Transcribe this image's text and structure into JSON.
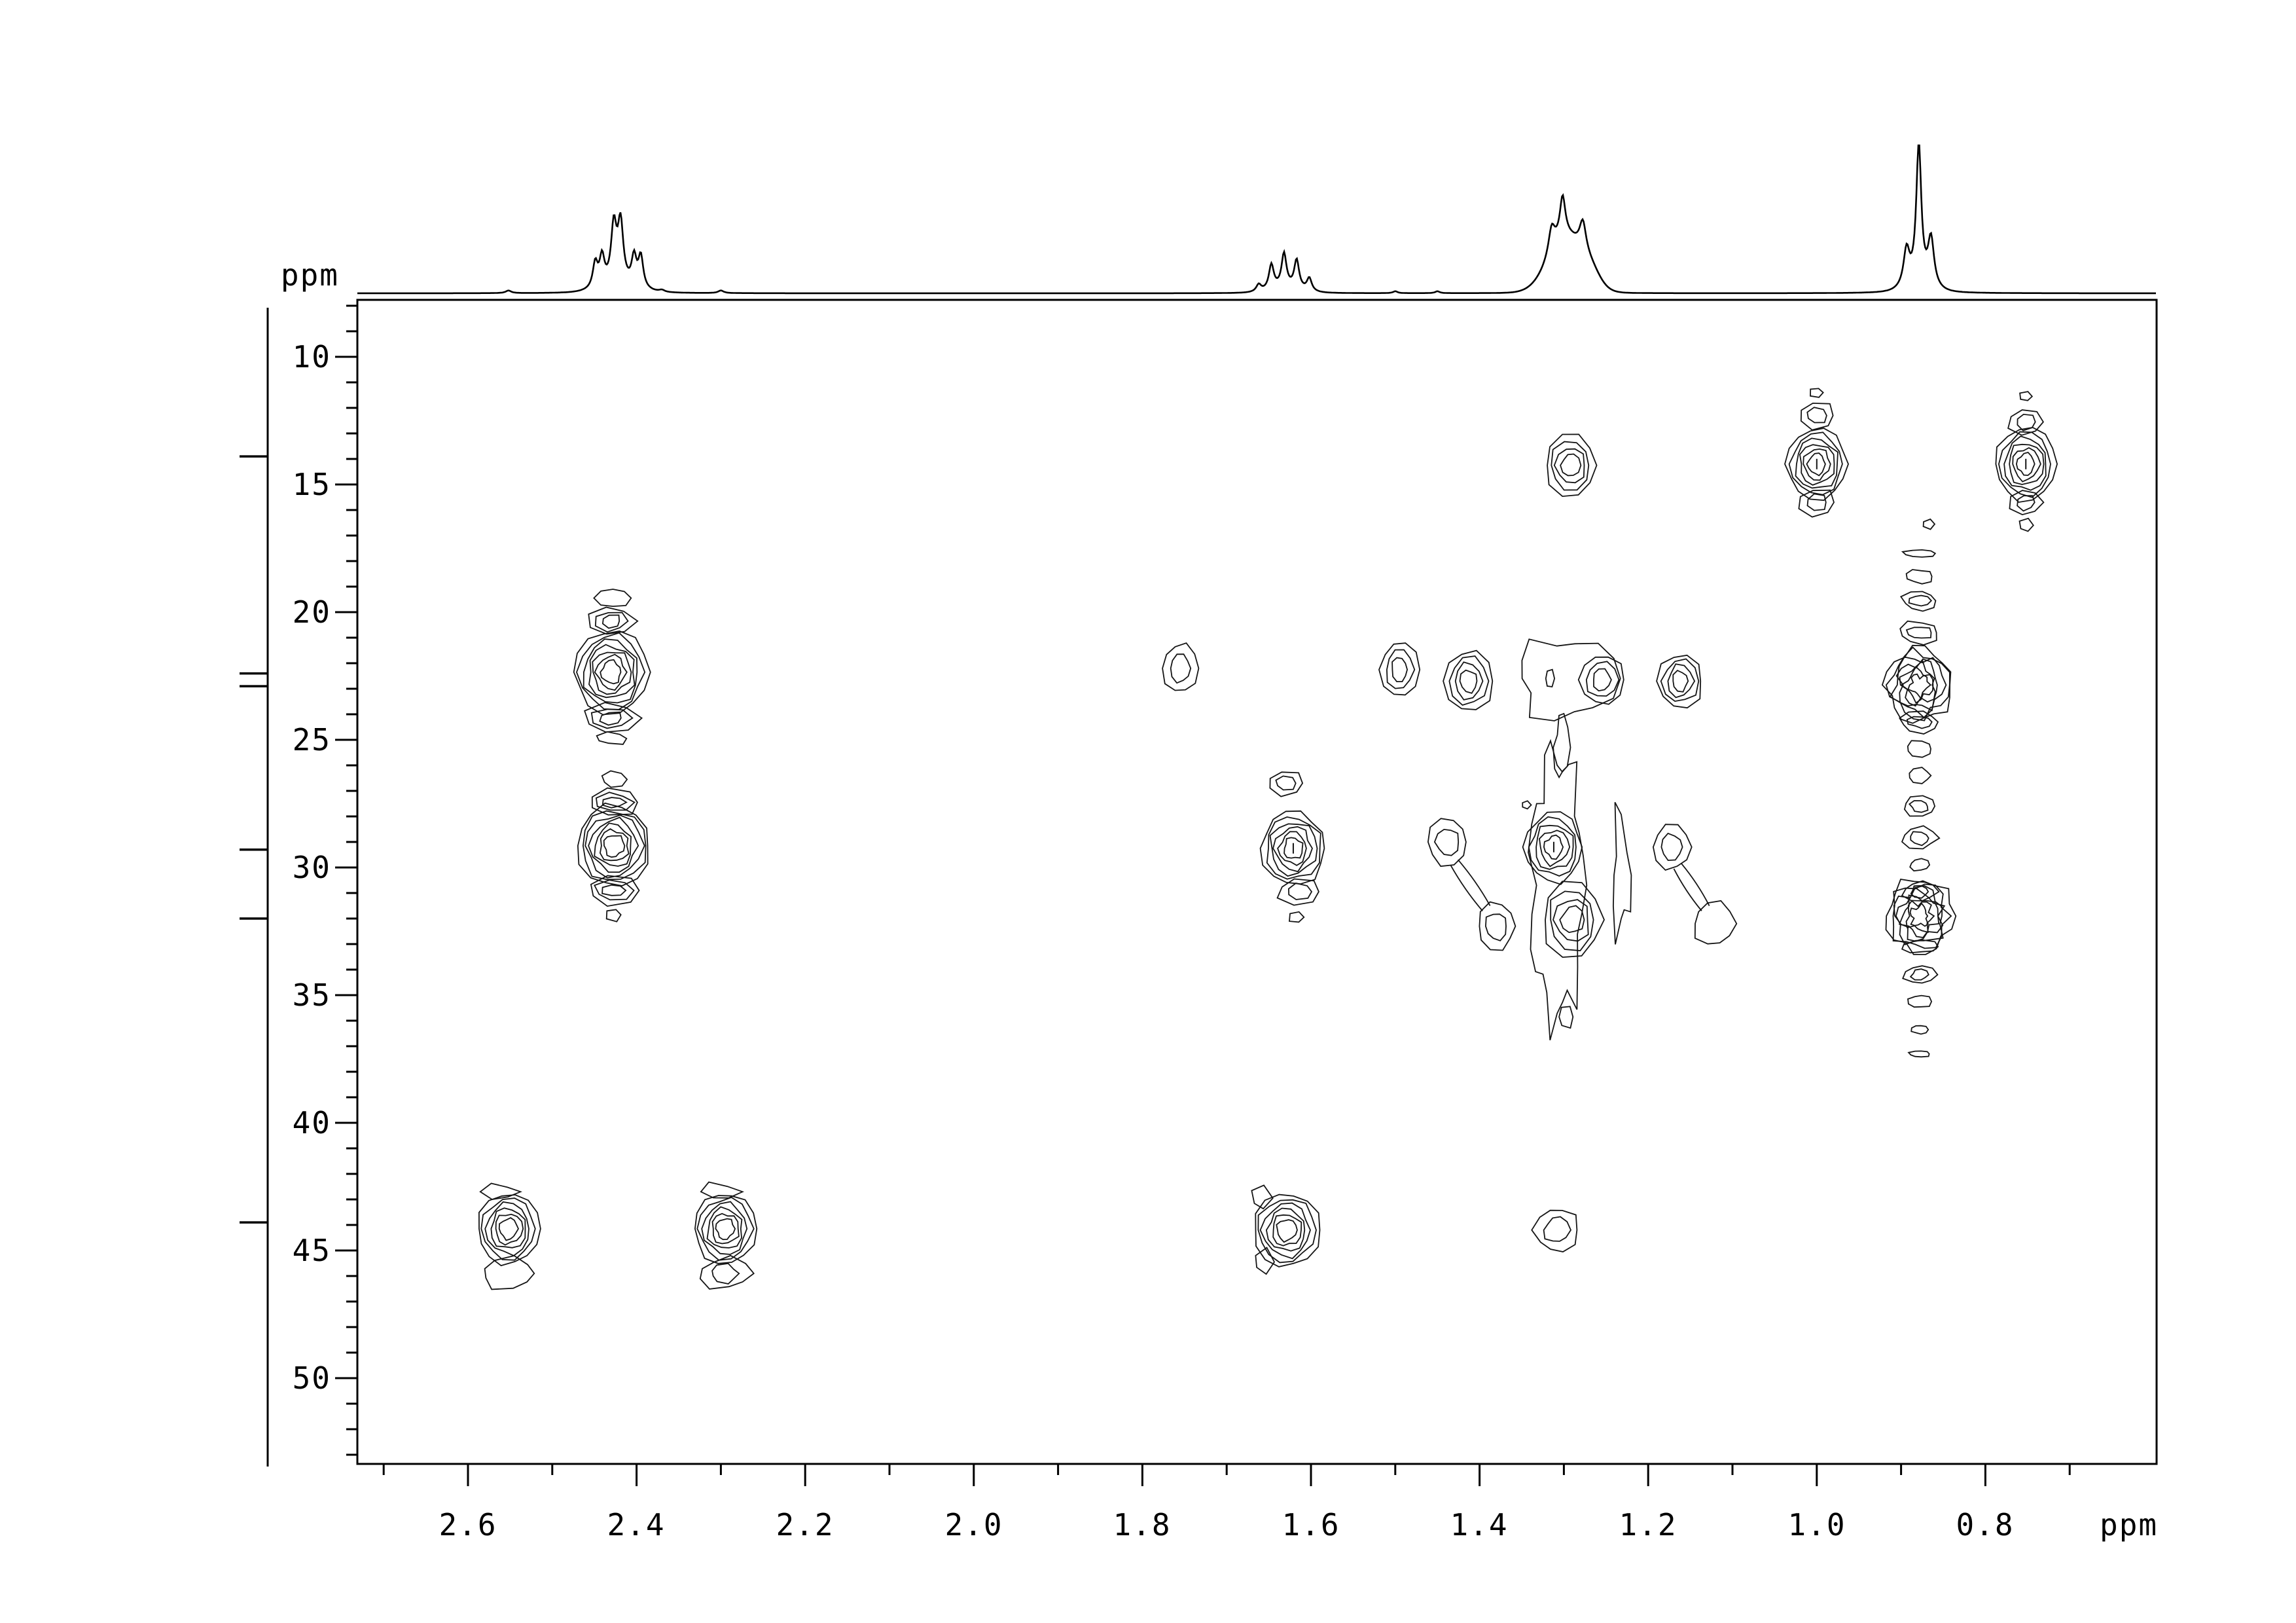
{
  "labels": {
    "top_left_ppm": "ppm",
    "bottom_right_ppm": "ppm"
  },
  "axes": {
    "x": {
      "unit": "ppm",
      "tick_labels": [
        "2.6",
        "2.4",
        "2.2",
        "2.0",
        "1.8",
        "1.6",
        "1.4",
        "1.2",
        "1.0",
        "0.8"
      ],
      "tick_values": [
        2.6,
        2.4,
        2.2,
        2.0,
        1.8,
        1.6,
        1.4,
        1.2,
        1.0,
        0.8
      ],
      "minor_tick_step": 0.1,
      "ppm_left": 2.73,
      "ppm_right": 0.6
    },
    "y": {
      "unit": "ppm",
      "tick_labels": [
        "10",
        "15",
        "20",
        "25",
        "30",
        "35",
        "40",
        "45",
        "50"
      ],
      "tick_values": [
        10,
        15,
        20,
        25,
        30,
        35,
        40,
        45,
        50
      ],
      "minor_tick_step": 1,
      "ppm_top": 7.8,
      "ppm_bottom": 53.3
    }
  },
  "chart_data": {
    "type": "heatmap",
    "subtype": "2D NMR contour spectrum (1H horizontal axis, 13C vertical axis) with 1H projection trace on top and 13C peak-position ruler on the left",
    "title": "",
    "x_axis": {
      "label": "ppm",
      "range": [
        2.73,
        0.6
      ],
      "direction": "decreasing-rightward",
      "grid": false
    },
    "y_axis": {
      "label": "ppm",
      "range": [
        7.8,
        53.3
      ],
      "direction": "increasing-downward",
      "grid": false
    },
    "legend": "none",
    "cross_peaks": [
      {
        "h1": 1.292,
        "c13": 14.25,
        "intensity": 4,
        "rings": 4,
        "w": 78,
        "h": 96,
        "jag": 0.07
      },
      {
        "h1": 1.0,
        "c13": 14.2,
        "intensity": 6,
        "rings": 6,
        "w": 92,
        "h": 108,
        "jag": 0.06,
        "dash": true
      },
      {
        "h1": 0.752,
        "c13": 14.2,
        "intensity": 6,
        "rings": 6,
        "w": 92,
        "h": 112,
        "jag": 0.06,
        "dash": true
      },
      {
        "h1": 2.43,
        "c13": 22.35,
        "intensity": 7,
        "rings": 7,
        "w": 112,
        "h": 128,
        "jag": 0.06
      },
      {
        "h1": 1.755,
        "c13": 22.2,
        "intensity": 2,
        "rings": 2,
        "w": 54,
        "h": 74,
        "jag": 0.08
      },
      {
        "h1": 1.495,
        "c13": 22.25,
        "intensity": 3,
        "rings": 3,
        "w": 58,
        "h": 84,
        "jag": 0.08
      },
      {
        "h1": 1.413,
        "c13": 22.7,
        "intensity": 4,
        "rings": 4,
        "w": 74,
        "h": 94,
        "jag": 0.07
      },
      {
        "h1": 1.255,
        "c13": 22.65,
        "intensity": 3,
        "rings": 3,
        "w": 66,
        "h": 76,
        "jag": 0.08
      },
      {
        "h1": 1.162,
        "c13": 22.7,
        "intensity": 4,
        "rings": 4,
        "w": 68,
        "h": 84,
        "jag": 0.09
      },
      {
        "h1": 0.879,
        "c13": 22.85,
        "intensity": 7,
        "rings": 7,
        "w": 100,
        "h": 112,
        "jag": 0.13,
        "n": 18
      },
      {
        "h1": 2.427,
        "c13": 29.15,
        "intensity": 7,
        "rings": 7,
        "w": 112,
        "h": 124,
        "jag": 0.06
      },
      {
        "h1": 1.621,
        "c13": 29.25,
        "intensity": 6,
        "rings": 6,
        "w": 98,
        "h": 112,
        "jag": 0.07,
        "dash": true
      },
      {
        "h1": 1.438,
        "c13": 29.0,
        "intensity": 2,
        "rings": 2,
        "w": 62,
        "h": 72,
        "jag": 0.09
      },
      {
        "h1": 1.38,
        "c13": 32.3,
        "intensity": 2,
        "rings": 2,
        "w": 58,
        "h": 72,
        "jag": 0.1
      },
      {
        "h1": 1.312,
        "c13": 29.2,
        "intensity": 5,
        "rings": 5,
        "w": 88,
        "h": 106,
        "jag": 0.08,
        "dash": true
      },
      {
        "h1": 1.29,
        "c13": 32.05,
        "intensity": 4,
        "rings": 4,
        "w": 92,
        "h": 116,
        "jag": 0.09
      },
      {
        "h1": 1.172,
        "c13": 29.2,
        "intensity": 2,
        "rings": 2,
        "w": 58,
        "h": 68,
        "jag": 0.09
      },
      {
        "h1": 1.122,
        "c13": 32.2,
        "intensity": 1,
        "rings": 1,
        "w": 62,
        "h": 66,
        "jag": 0.12
      },
      {
        "h1": 0.878,
        "c13": 31.9,
        "intensity": 7,
        "rings": 7,
        "w": 100,
        "h": 112,
        "jag": 0.13,
        "n": 18
      },
      {
        "h1": 2.552,
        "c13": 44.15,
        "intensity": 6,
        "rings": 6,
        "w": 94,
        "h": 108,
        "jag": 0.06
      },
      {
        "h1": 2.295,
        "c13": 44.15,
        "intensity": 6,
        "rings": 6,
        "w": 94,
        "h": 108,
        "jag": 0.06
      },
      {
        "h1": 1.629,
        "c13": 44.2,
        "intensity": 6,
        "rings": 6,
        "w": 102,
        "h": 112,
        "jag": 0.06
      },
      {
        "h1": 1.309,
        "c13": 44.2,
        "intensity": 2,
        "rings": 2,
        "w": 64,
        "h": 68,
        "jag": 0.14
      }
    ],
    "satellites": [
      {
        "h1": 1.0,
        "c13": 12.3,
        "rings": 2,
        "w": 56,
        "h": 40,
        "n": 7,
        "jag": 0.12
      },
      {
        "h1": 1.0,
        "c13": 11.4,
        "rings": 1,
        "w": 22,
        "h": 16,
        "n": 5,
        "jag": 0.15
      },
      {
        "h1": 1.0,
        "c13": 15.7,
        "rings": 2,
        "w": 58,
        "h": 42,
        "n": 7,
        "jag": 0.12
      },
      {
        "h1": 0.752,
        "c13": 12.55,
        "rings": 2,
        "w": 54,
        "h": 40,
        "n": 7,
        "jag": 0.12
      },
      {
        "h1": 0.752,
        "c13": 11.55,
        "rings": 1,
        "w": 20,
        "h": 15,
        "n": 5,
        "jag": 0.15
      },
      {
        "h1": 0.752,
        "c13": 15.7,
        "rings": 2,
        "w": 50,
        "h": 40,
        "n": 7,
        "jag": 0.12
      },
      {
        "h1": 0.752,
        "c13": 16.6,
        "rings": 1,
        "w": 22,
        "h": 20,
        "n": 5,
        "jag": 0.15
      },
      {
        "h1": 2.43,
        "c13": 20.35,
        "rings": 3,
        "w": 70,
        "h": 44,
        "n": 7,
        "jag": 0.12
      },
      {
        "h1": 2.428,
        "c13": 19.45,
        "rings": 1,
        "w": 52,
        "h": 30,
        "n": 8,
        "jag": 0.14
      },
      {
        "h1": 2.43,
        "c13": 24.15,
        "rings": 3,
        "w": 82,
        "h": 46,
        "n": 7,
        "jag": 0.12
      },
      {
        "h1": 2.43,
        "c13": 24.95,
        "rings": 1,
        "w": 46,
        "h": 18,
        "n": 7,
        "jag": 0.22
      },
      {
        "h1": 2.427,
        "c13": 26.55,
        "rings": 1,
        "w": 38,
        "h": 24,
        "n": 7,
        "jag": 0.14
      },
      {
        "h1": 2.427,
        "c13": 27.45,
        "rings": 3,
        "w": 78,
        "h": 40,
        "n": 7,
        "jag": 0.12
      },
      {
        "h1": 2.427,
        "c13": 30.9,
        "rings": 3,
        "w": 80,
        "h": 44,
        "n": 7,
        "jag": 0.12
      },
      {
        "h1": 2.427,
        "c13": 31.85,
        "rings": 1,
        "w": 26,
        "h": 20,
        "n": 5,
        "jag": 0.15
      },
      {
        "h1": 1.63,
        "c13": 26.7,
        "rings": 2,
        "w": 56,
        "h": 36,
        "n": 7,
        "jag": 0.12
      },
      {
        "h1": 1.614,
        "c13": 30.95,
        "rings": 2,
        "w": 68,
        "h": 40,
        "n": 7,
        "jag": 0.12
      },
      {
        "h1": 1.617,
        "c13": 31.95,
        "rings": 1,
        "w": 24,
        "h": 18,
        "n": 5,
        "jag": 0.15
      },
      {
        "h1": 2.552,
        "c13": 45.9,
        "rings": 1,
        "w": 84,
        "h": 46,
        "n": 9,
        "jag": 0.18
      },
      {
        "h1": 2.56,
        "c13": 42.7,
        "rings": 1,
        "w": 56,
        "h": 26,
        "n": 6,
        "jag": 0.3
      },
      {
        "h1": 2.295,
        "c13": 45.9,
        "rings": 2,
        "w": 80,
        "h": 46,
        "n": 9,
        "jag": 0.18
      },
      {
        "h1": 2.3,
        "c13": 42.7,
        "rings": 1,
        "w": 56,
        "h": 26,
        "n": 6,
        "jag": 0.3
      },
      {
        "h1": 1.66,
        "c13": 42.95,
        "rings": 1,
        "w": 30,
        "h": 36,
        "n": 5,
        "jag": 0.25
      },
      {
        "h1": 1.657,
        "c13": 45.45,
        "rings": 1,
        "w": 30,
        "h": 36,
        "n": 5,
        "jag": 0.25
      },
      {
        "h1": 1.345,
        "c13": 27.55,
        "rings": 1,
        "w": 14,
        "h": 12,
        "n": 5,
        "jag": 0.15
      },
      {
        "h1": 0.868,
        "c13": 16.55,
        "rings": 1,
        "w": 20,
        "h": 14,
        "n": 5,
        "jag": 0.2
      },
      {
        "h1": 1.317,
        "c13": 22.6,
        "rings": 1,
        "w": 14,
        "h": 26,
        "n": 6,
        "jag": 0.2
      }
    ],
    "t1_noise_column": {
      "h1": 0.878,
      "blobs": [
        {
          "c13": 17.7,
          "rings": 1,
          "w": 46,
          "h": 12
        },
        {
          "c13": 18.6,
          "rings": 1,
          "w": 40,
          "h": 22
        },
        {
          "c13": 19.55,
          "rings": 2,
          "w": 52,
          "h": 30
        },
        {
          "c13": 20.8,
          "rings": 2,
          "w": 62,
          "h": 34
        },
        {
          "c13": 24.3,
          "rings": 2,
          "w": 62,
          "h": 32
        },
        {
          "c13": 25.35,
          "rings": 1,
          "w": 42,
          "h": 24
        },
        {
          "c13": 26.4,
          "rings": 1,
          "w": 36,
          "h": 22
        },
        {
          "c13": 27.6,
          "rings": 2,
          "w": 52,
          "h": 30
        },
        {
          "c13": 28.85,
          "rings": 2,
          "w": 56,
          "h": 32
        },
        {
          "c13": 29.9,
          "rings": 1,
          "w": 30,
          "h": 18
        },
        {
          "c13": 30.95,
          "rings": 2,
          "w": 50,
          "h": 30
        },
        {
          "c13": 33.1,
          "rings": 1,
          "w": 52,
          "h": 20
        },
        {
          "c13": 34.2,
          "rings": 2,
          "w": 46,
          "h": 28
        },
        {
          "c13": 35.25,
          "rings": 1,
          "w": 34,
          "h": 20
        },
        {
          "c13": 36.35,
          "rings": 1,
          "w": 24,
          "h": 14
        },
        {
          "c13": 37.3,
          "rings": 1,
          "w": 30,
          "h": 10
        }
      ]
    },
    "links": [
      {
        "x1": 1.43,
        "y1": 29.8,
        "x2": 1.392,
        "y2": 31.6,
        "off": 7
      },
      {
        "x1": 1.165,
        "y1": 29.95,
        "x2": 1.132,
        "y2": 31.6,
        "off": 7
      }
    ],
    "envelopes": [
      {
        "h1": 1.308,
        "c13": 30.7,
        "rx": 40,
        "ry": 200,
        "n": 28,
        "jag": 0.18
      },
      {
        "h1": 1.303,
        "c13": 25.3,
        "rx": 11,
        "ry": 48,
        "n": 10,
        "jag": 0.25
      },
      {
        "h1": 1.232,
        "c13": 30.3,
        "rx": 13,
        "ry": 88,
        "n": 12,
        "jag": 0.4
      },
      {
        "h1": 1.298,
        "c13": 22.6,
        "rx": 72,
        "ry": 62,
        "n": 14,
        "jag": 0.22
      },
      {
        "h1": 1.298,
        "c13": 35.85,
        "rx": 12,
        "ry": 16,
        "n": 6,
        "jag": 0.2
      }
    ],
    "h1_projection": {
      "description": "1H 1D trace across the top; peak heights in canvas px above baseline",
      "peaks": [
        {
          "t": "L",
          "c": 2.449,
          "hgt": 38,
          "w": 4.5
        },
        {
          "t": "L",
          "c": 2.441,
          "hgt": 44,
          "w": 4.5
        },
        {
          "t": "L",
          "c": 2.427,
          "hgt": 88,
          "w": 5
        },
        {
          "t": "L",
          "c": 2.419,
          "hgt": 92,
          "w": 5
        },
        {
          "t": "L",
          "c": 2.403,
          "hgt": 44,
          "w": 4.5
        },
        {
          "t": "L",
          "c": 2.395,
          "hgt": 48,
          "w": 4.5
        },
        {
          "t": "G",
          "c": 2.422,
          "hgt": 10,
          "w": 26
        },
        {
          "t": "L",
          "c": 2.552,
          "hgt": 4,
          "w": 5
        },
        {
          "t": "L",
          "c": 2.37,
          "hgt": 3,
          "w": 5
        },
        {
          "t": "L",
          "c": 2.3,
          "hgt": 4,
          "w": 5
        },
        {
          "t": "L",
          "c": 1.662,
          "hgt": 11,
          "w": 4.5
        },
        {
          "t": "L",
          "c": 1.647,
          "hgt": 38,
          "w": 4.5
        },
        {
          "t": "L",
          "c": 1.632,
          "hgt": 52,
          "w": 4.5
        },
        {
          "t": "L",
          "c": 1.617,
          "hgt": 44,
          "w": 4.5
        },
        {
          "t": "L",
          "c": 1.602,
          "hgt": 20,
          "w": 4.5
        },
        {
          "t": "G",
          "c": 1.63,
          "hgt": 7,
          "w": 22
        },
        {
          "t": "L",
          "c": 1.5,
          "hgt": 3,
          "w": 4
        },
        {
          "t": "L",
          "c": 1.45,
          "hgt": 3,
          "w": 4
        },
        {
          "t": "G",
          "c": 1.297,
          "hgt": 84,
          "w": 27
        },
        {
          "t": "L",
          "c": 1.3145,
          "hgt": 40,
          "w": 6
        },
        {
          "t": "L",
          "c": 1.3015,
          "hgt": 62,
          "w": 5
        },
        {
          "t": "L",
          "c": 1.2775,
          "hgt": 45,
          "w": 6
        },
        {
          "t": "G",
          "c": 1.268,
          "hgt": 16,
          "w": 14
        },
        {
          "t": "L",
          "c": 0.8935,
          "hgt": 55,
          "w": 5.5
        },
        {
          "t": "L",
          "c": 0.879,
          "hgt": 212,
          "w": 4.5
        },
        {
          "t": "L",
          "c": 0.8645,
          "hgt": 72,
          "w": 5.5
        },
        {
          "t": "G",
          "c": 0.879,
          "hgt": 13,
          "w": 18
        }
      ]
    },
    "c13_projection_tick_ppm": [
      13.9,
      22.4,
      22.9,
      29.3,
      32.0,
      43.9
    ]
  }
}
